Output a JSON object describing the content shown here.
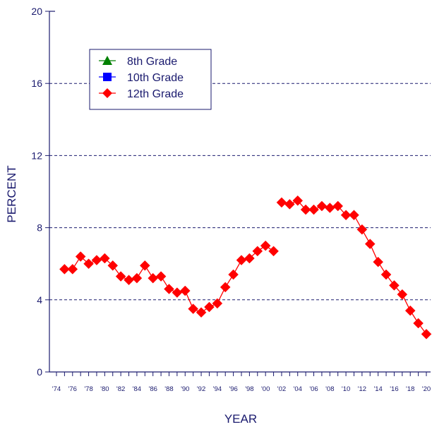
{
  "chart_data": {
    "type": "line",
    "xlabel": "YEAR",
    "ylabel": "PERCENT",
    "ylim": [
      0,
      20
    ],
    "yticks": [
      0,
      4,
      8,
      12,
      16,
      20
    ],
    "xlim": [
      1974,
      2020
    ],
    "xticks": [
      {
        "value": 1974,
        "label": "'74"
      },
      {
        "value": 1976,
        "label": "'76"
      },
      {
        "value": 1978,
        "label": "'78"
      },
      {
        "value": 1980,
        "label": "'80"
      },
      {
        "value": 1982,
        "label": "'82"
      },
      {
        "value": 1984,
        "label": "'84"
      },
      {
        "value": 1986,
        "label": "'86"
      },
      {
        "value": 1988,
        "label": "'88"
      },
      {
        "value": 1990,
        "label": "'90"
      },
      {
        "value": 1992,
        "label": "'92"
      },
      {
        "value": 1994,
        "label": "'94"
      },
      {
        "value": 1996,
        "label": "'96"
      },
      {
        "value": 1998,
        "label": "'98"
      },
      {
        "value": 2000,
        "label": "'00"
      },
      {
        "value": 2002,
        "label": "'02"
      },
      {
        "value": 2004,
        "label": "'04"
      },
      {
        "value": 2006,
        "label": "'06"
      },
      {
        "value": 2008,
        "label": "'08"
      },
      {
        "value": 2010,
        "label": "'10"
      },
      {
        "value": 2012,
        "label": "'12"
      },
      {
        "value": 2014,
        "label": "'14"
      },
      {
        "value": 2016,
        "label": "'16"
      },
      {
        "value": 2018,
        "label": "'18"
      },
      {
        "value": 2020,
        "label": "'20"
      }
    ],
    "grid": "horizontal dashed",
    "legend_position": "top-left",
    "series": [
      {
        "name": "8th Grade",
        "marker": "triangle",
        "color": "#008000",
        "segments": []
      },
      {
        "name": "10th Grade",
        "marker": "square",
        "color": "#0000ff",
        "segments": []
      },
      {
        "name": "12th Grade",
        "marker": "diamond",
        "color": "#ff0000",
        "segments": [
          {
            "x": [
              1975,
              1976,
              1977,
              1978,
              1979,
              1980,
              1981,
              1982,
              1983,
              1984,
              1985,
              1986,
              1987,
              1988,
              1989,
              1990,
              1991,
              1992,
              1993,
              1994,
              1995,
              1996,
              1997,
              1998,
              1999,
              2000,
              2001
            ],
            "y": [
              5.7,
              5.7,
              6.4,
              6.0,
              6.2,
              6.3,
              5.9,
              5.3,
              5.1,
              5.2,
              5.9,
              5.2,
              5.3,
              4.6,
              4.4,
              4.5,
              3.5,
              3.3,
              3.6,
              3.8,
              4.7,
              5.4,
              6.2,
              6.3,
              6.7,
              7.0,
              6.7
            ]
          },
          {
            "x": [
              2002,
              2003,
              2004,
              2005,
              2006,
              2007,
              2008,
              2009,
              2010,
              2011,
              2012,
              2013,
              2014,
              2015,
              2016,
              2017,
              2018,
              2019,
              2020
            ],
            "y": [
              9.4,
              9.3,
              9.5,
              9.0,
              9.0,
              9.2,
              9.1,
              9.2,
              8.7,
              8.7,
              7.9,
              7.1,
              6.1,
              5.4,
              4.8,
              4.3,
              3.4,
              2.7,
              2.1
            ]
          }
        ]
      }
    ]
  }
}
